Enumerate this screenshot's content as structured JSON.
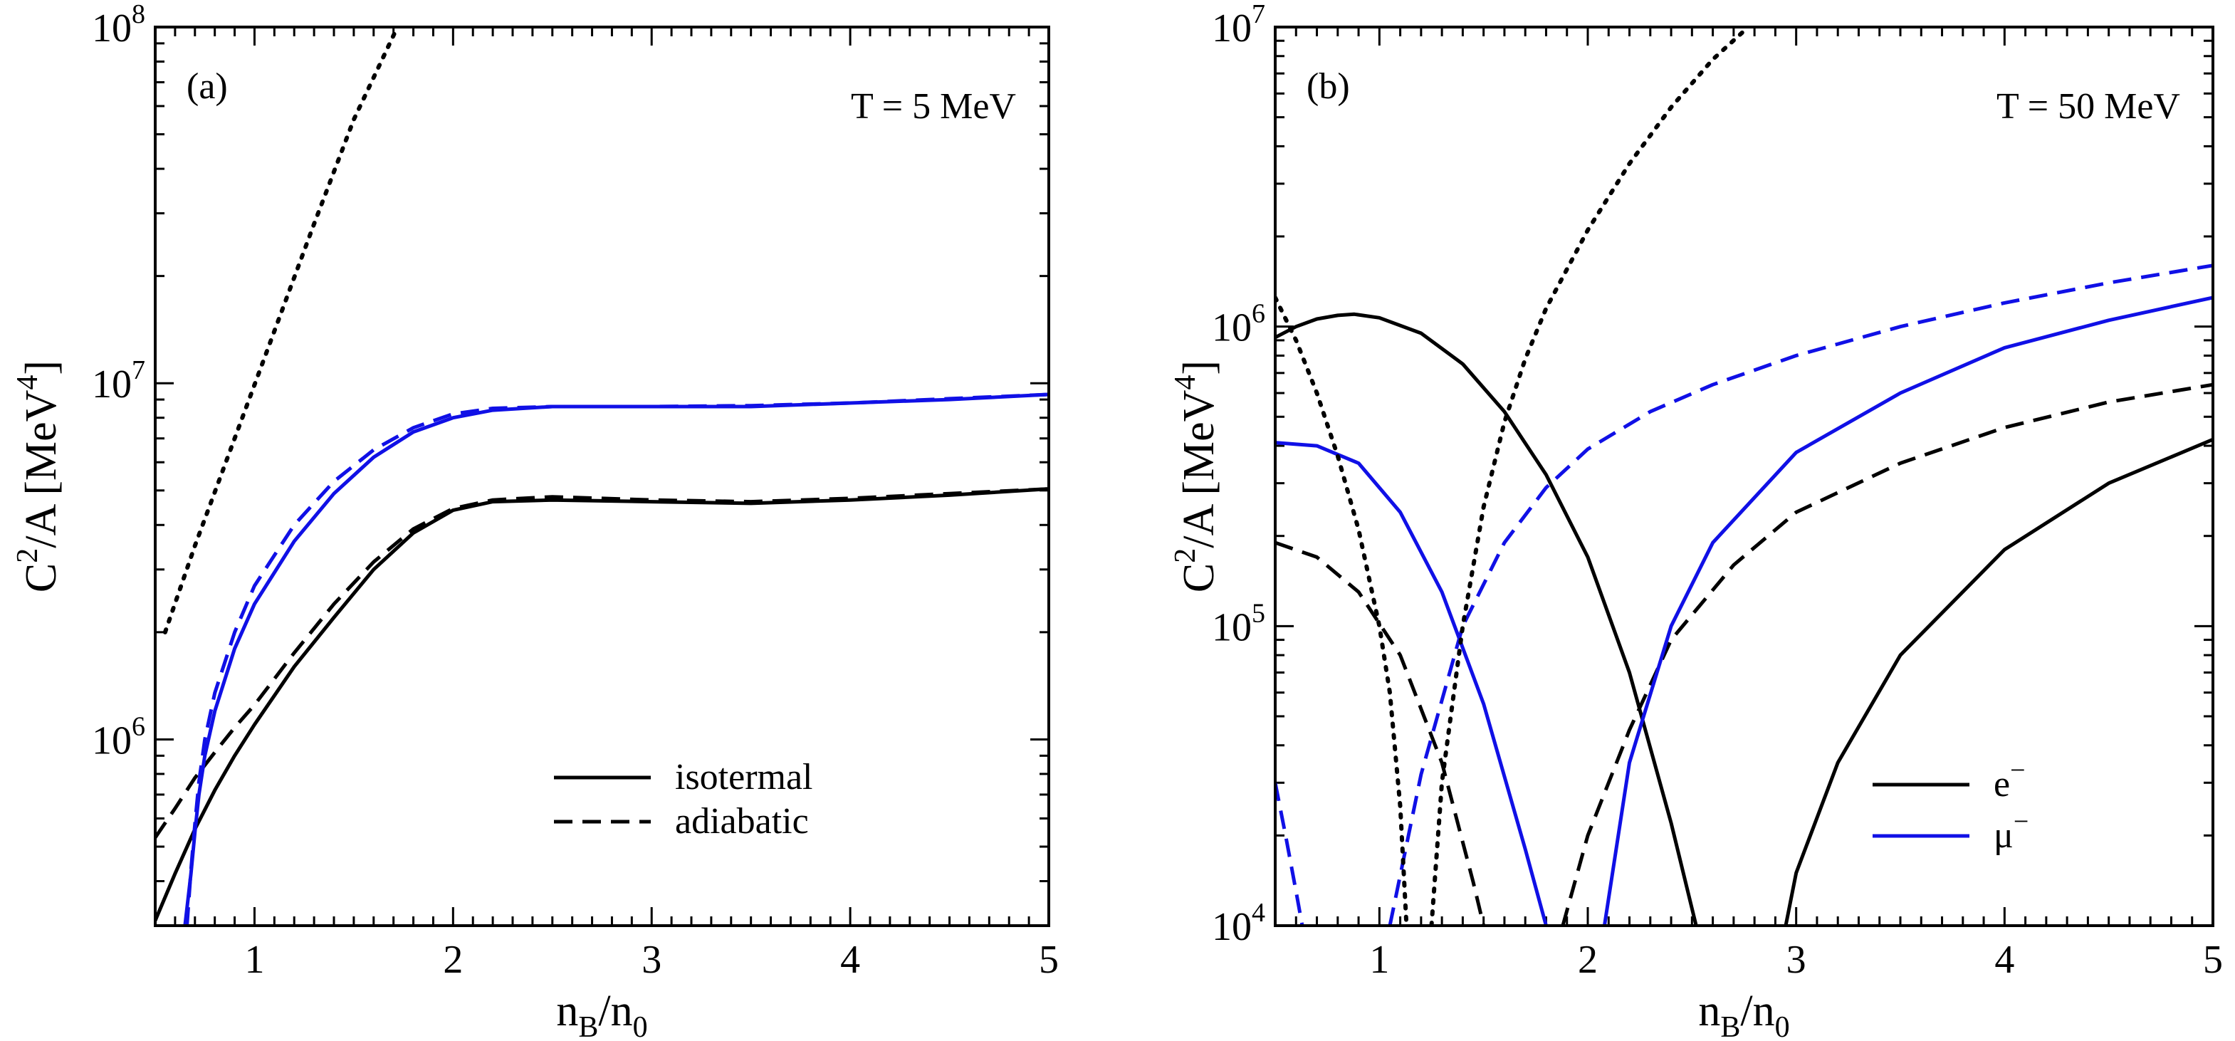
{
  "colors": {
    "black": "#000000",
    "blue": "#1010e6"
  },
  "chart_data": [
    {
      "type": "line",
      "panel_label": "(a)",
      "annotation": "T = 5 MeV",
      "xlabel": {
        "base": "n",
        "sub1": "B",
        "mid": "/n",
        "sub2": "0"
      },
      "ylabel": {
        "pre": "C",
        "sup1": "2",
        "mid": "/A [MeV",
        "sup2": "4",
        "post": "]"
      },
      "x_ticks": [
        "1",
        "2",
        "3",
        "4",
        "5"
      ],
      "y_ticks": [
        {
          "base": "10",
          "exp": "6"
        },
        {
          "base": "10",
          "exp": "7"
        },
        {
          "base": "10",
          "exp": "8"
        }
      ],
      "xlim": [
        0.5,
        5
      ],
      "ylim": [
        300000,
        100000000
      ],
      "yscale": "log",
      "legend": [
        {
          "label": "isotermal",
          "style": "solid",
          "color": "#000000"
        },
        {
          "label": "adiabatic",
          "style": "dashed",
          "color": "#000000"
        }
      ],
      "series": [
        {
          "name": "e- isotermal",
          "color": "#000000",
          "style": "solid",
          "x": [
            0.5,
            0.6,
            0.7,
            0.8,
            0.9,
            1.0,
            1.2,
            1.4,
            1.6,
            1.8,
            2.0,
            2.2,
            2.5,
            3.0,
            3.5,
            4.0,
            4.5,
            5.0
          ],
          "y": [
            310000,
            420000,
            560000,
            720000,
            900000,
            1100000,
            1600000,
            2200000,
            3000000,
            3800000,
            4400000,
            4650000,
            4700000,
            4650000,
            4600000,
            4700000,
            4850000,
            5050000
          ]
        },
        {
          "name": "e- adiabatic",
          "color": "#000000",
          "style": "dashed",
          "x": [
            0.5,
            0.6,
            0.7,
            0.8,
            0.9,
            1.0,
            1.2,
            1.4,
            1.6,
            1.8,
            2.0,
            2.2,
            2.5,
            3.0,
            3.5,
            4.0,
            4.5,
            5.0
          ],
          "y": [
            530000,
            640000,
            780000,
            920000,
            1080000,
            1250000,
            1750000,
            2400000,
            3150000,
            3900000,
            4450000,
            4700000,
            4800000,
            4700000,
            4650000,
            4750000,
            4900000,
            5050000
          ]
        },
        {
          "name": "mu- isotermal",
          "color": "#1010e6",
          "style": "solid",
          "x": [
            0.65,
            0.68,
            0.7,
            0.72,
            0.75,
            0.8,
            0.9,
            1.0,
            1.2,
            1.4,
            1.6,
            1.8,
            2.0,
            2.2,
            2.5,
            3.0,
            3.5,
            4.0,
            4.5,
            5.0
          ],
          "y": [
            300000,
            420000,
            550000,
            700000,
            900000,
            1200000,
            1800000,
            2400000,
            3600000,
            4900000,
            6200000,
            7300000,
            8000000,
            8400000,
            8600000,
            8600000,
            8600000,
            8800000,
            9000000,
            9300000
          ]
        },
        {
          "name": "mu- adiabatic",
          "color": "#1010e6",
          "style": "dashed",
          "x": [
            0.66,
            0.68,
            0.7,
            0.72,
            0.75,
            0.8,
            0.9,
            1.0,
            1.2,
            1.4,
            1.6,
            1.8,
            2.0,
            2.2,
            2.5,
            3.0,
            3.5,
            4.0,
            4.5,
            5.0
          ],
          "y": [
            300000,
            430000,
            580000,
            760000,
            1000000,
            1350000,
            2000000,
            2700000,
            4000000,
            5300000,
            6500000,
            7500000,
            8200000,
            8500000,
            8600000,
            8600000,
            8650000,
            8800000,
            9050000,
            9300000
          ]
        },
        {
          "name": "dotted",
          "color": "#000000",
          "style": "dotted",
          "x": [
            0.55,
            0.7,
            0.9,
            1.1,
            1.3,
            1.5,
            1.72
          ],
          "y": [
            2000000,
            3500000,
            7000000,
            14000000,
            28000000,
            55000000,
            100000000
          ]
        }
      ]
    },
    {
      "type": "line",
      "panel_label": "(b)",
      "annotation": "T = 50 MeV",
      "xlabel": {
        "base": "n",
        "sub1": "B",
        "mid": "/n",
        "sub2": "0"
      },
      "ylabel": {
        "pre": "C",
        "sup1": "2",
        "mid": "/A [MeV",
        "sup2": "4",
        "post": "]"
      },
      "x_ticks": [
        "1",
        "2",
        "3",
        "4",
        "5"
      ],
      "y_ticks": [
        {
          "base": "10",
          "exp": "4"
        },
        {
          "base": "10",
          "exp": "5"
        },
        {
          "base": "10",
          "exp": "6"
        },
        {
          "base": "10",
          "exp": "7"
        }
      ],
      "xlim": [
        0.5,
        5
      ],
      "ylim": [
        10000,
        10000000
      ],
      "yscale": "log",
      "legend": [
        {
          "label": "e",
          "sup": "−",
          "style": "solid",
          "color": "#000000"
        },
        {
          "label": "μ",
          "sup": "−",
          "style": "solid",
          "color": "#1010e6"
        }
      ],
      "series": [
        {
          "name": "e- solid left",
          "color": "#000000",
          "style": "solid",
          "x": [
            0.5,
            0.6,
            0.7,
            0.8,
            0.88,
            1.0,
            1.2,
            1.4,
            1.6,
            1.8,
            2.0,
            2.2,
            2.4,
            2.52
          ],
          "y": [
            920000,
            1000000,
            1060000,
            1090000,
            1100000,
            1070000,
            950000,
            750000,
            520000,
            320000,
            170000,
            70000,
            22000,
            10000
          ]
        },
        {
          "name": "e- solid right",
          "color": "#000000",
          "style": "solid",
          "x": [
            2.95,
            3.0,
            3.2,
            3.5,
            4.0,
            4.5,
            5.0
          ],
          "y": [
            10000,
            15000,
            35000,
            80000,
            180000,
            300000,
            420000
          ]
        },
        {
          "name": "e- dashed left",
          "color": "#000000",
          "style": "dashed",
          "x": [
            0.5,
            0.7,
            0.9,
            1.1,
            1.3,
            1.45,
            1.5
          ],
          "y": [
            190000,
            170000,
            130000,
            80000,
            35000,
            14000,
            10000
          ]
        },
        {
          "name": "e- dashed right",
          "color": "#000000",
          "style": "dashed",
          "x": [
            1.88,
            2.0,
            2.2,
            2.4,
            2.7,
            3.0,
            3.5,
            4.0,
            4.5,
            5.0
          ],
          "y": [
            10000,
            20000,
            45000,
            90000,
            160000,
            240000,
            350000,
            460000,
            560000,
            640000
          ]
        },
        {
          "name": "mu- solid left",
          "color": "#1010e6",
          "style": "solid",
          "x": [
            0.5,
            0.7,
            0.9,
            1.1,
            1.3,
            1.5,
            1.7,
            1.8
          ],
          "y": [
            410000,
            400000,
            350000,
            240000,
            130000,
            55000,
            18000,
            10000
          ]
        },
        {
          "name": "mu- solid right",
          "color": "#1010e6",
          "style": "solid",
          "x": [
            2.08,
            2.2,
            2.4,
            2.6,
            3.0,
            3.5,
            4.0,
            4.5,
            5.0
          ],
          "y": [
            10000,
            35000,
            100000,
            190000,
            380000,
            600000,
            850000,
            1050000,
            1250000
          ]
        },
        {
          "name": "mu- dashed left",
          "color": "#1010e6",
          "style": "dashed",
          "x": [
            0.5,
            0.55,
            0.6,
            0.63
          ],
          "y": [
            30000,
            20000,
            13000,
            10000
          ]
        },
        {
          "name": "mu- dashed right",
          "color": "#1010e6",
          "style": "dashed",
          "x": [
            1.05,
            1.2,
            1.4,
            1.6,
            1.8,
            2.0,
            2.3,
            2.6,
            3.0,
            3.5,
            4.0,
            4.5,
            5.0
          ],
          "y": [
            10000,
            32000,
            100000,
            190000,
            290000,
            390000,
            520000,
            640000,
            800000,
            1000000,
            1200000,
            1400000,
            1600000
          ]
        },
        {
          "name": "dotted left",
          "color": "#000000",
          "style": "dotted",
          "x": [
            0.5,
            0.6,
            0.7,
            0.8,
            0.9,
            1.0,
            1.05,
            1.1,
            1.13
          ],
          "y": [
            1250000,
            900000,
            600000,
            370000,
            210000,
            100000,
            60000,
            25000,
            10000
          ]
        },
        {
          "name": "dotted right",
          "color": "#000000",
          "style": "dotted",
          "x": [
            1.25,
            1.3,
            1.4,
            1.5,
            1.6,
            1.7,
            1.8,
            2.0,
            2.2,
            2.4,
            2.6,
            2.77
          ],
          "y": [
            10000,
            30000,
            100000,
            250000,
            480000,
            780000,
            1150000,
            2100000,
            3500000,
            5400000,
            7800000,
            10000000
          ]
        }
      ]
    }
  ]
}
